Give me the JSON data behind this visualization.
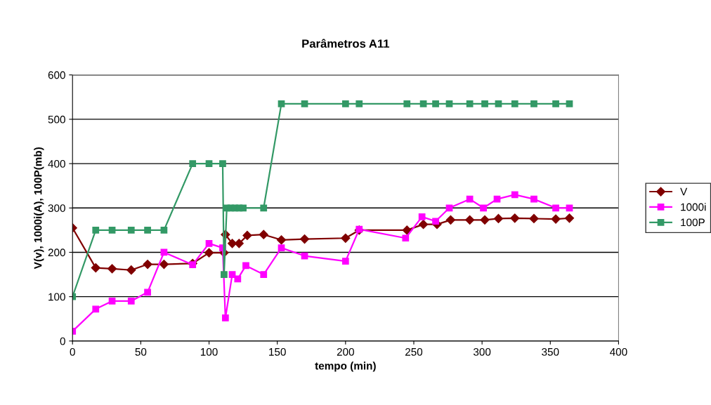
{
  "chart_data": {
    "type": "line",
    "title": "Parâmetros A11",
    "xlabel": "tempo (min)",
    "ylabel": "V(v), 1000i(A), 100P(mb)",
    "xlim": [
      0,
      400
    ],
    "xticks": [
      0,
      50,
      100,
      150,
      200,
      250,
      300,
      350,
      400
    ],
    "ylim": [
      0,
      600
    ],
    "yticks": [
      0,
      100,
      200,
      300,
      400,
      500,
      600
    ],
    "grid": "y",
    "legend": "right",
    "series": [
      {
        "name": "V",
        "color": "#800000",
        "marker": "diamond",
        "x": [
          0,
          17,
          29,
          43,
          55,
          67,
          88,
          100,
          111,
          112,
          117,
          122,
          128,
          140,
          153,
          170,
          200,
          210,
          245,
          257,
          267,
          277,
          291,
          302,
          312,
          324,
          338,
          354,
          364
        ],
        "values": [
          255,
          165,
          163,
          160,
          173,
          173,
          175,
          199,
          199,
          240,
          220,
          220,
          238,
          240,
          228,
          230,
          232,
          250,
          250,
          263,
          263,
          273,
          273,
          273,
          276,
          277,
          276,
          275,
          277
        ]
      },
      {
        "name": "1000i",
        "color": "#ff00ff",
        "marker": "square",
        "x": [
          0,
          17,
          29,
          43,
          55,
          67,
          88,
          100,
          110,
          112,
          117,
          121,
          127,
          140,
          153,
          170,
          200,
          210,
          244,
          256,
          266,
          276,
          291,
          301,
          311,
          324,
          338,
          354,
          364
        ],
        "values": [
          22,
          72,
          90,
          90,
          110,
          200,
          172,
          220,
          210,
          52,
          150,
          140,
          170,
          150,
          210,
          192,
          180,
          252,
          232,
          280,
          270,
          300,
          320,
          300,
          320,
          330,
          320,
          300,
          300
        ]
      },
      {
        "name": "100P",
        "color": "#339966",
        "marker": "square",
        "x": [
          0,
          17,
          29,
          43,
          55,
          67,
          88,
          100,
          110,
          111,
          113,
          116,
          119,
          122,
          125,
          140,
          153,
          170,
          200,
          210,
          245,
          257,
          266,
          276,
          291,
          302,
          312,
          324,
          338,
          354,
          364
        ],
        "values": [
          100,
          250,
          250,
          250,
          250,
          250,
          400,
          400,
          400,
          150,
          300,
          300,
          300,
          300,
          300,
          300,
          535,
          535,
          535,
          535,
          535,
          535,
          535,
          535,
          535,
          535,
          535,
          535,
          535,
          535,
          535
        ]
      }
    ]
  }
}
